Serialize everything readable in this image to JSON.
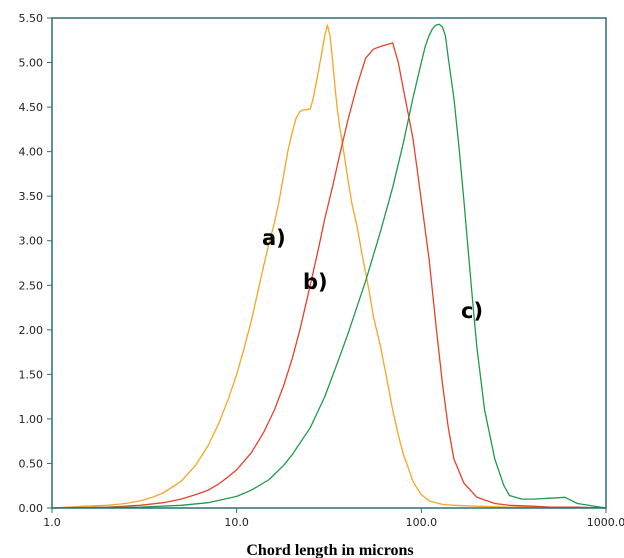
{
  "chart_data": {
    "type": "line",
    "title": "",
    "xlabel": "Chord length in microns",
    "ylabel": "",
    "xscale": "log",
    "xlim": [
      1.0,
      1000.0
    ],
    "ylim": [
      0.0,
      5.5
    ],
    "grid": false,
    "legend": "none",
    "x_ticks": [
      "1.0",
      "10.0",
      "100.0",
      "1000.0"
    ],
    "y_ticks": [
      "0.00",
      "0.50",
      "1.00",
      "1.50",
      "2.00",
      "2.50",
      "3.00",
      "3.50",
      "4.00",
      "4.50",
      "5.00",
      "5.50"
    ],
    "annotations": [
      "a)",
      "b)",
      "c)"
    ],
    "colors": {
      "frame": "#2b6e78",
      "a": "#f5a623",
      "b": "#e8412b",
      "c": "#1f9a4c"
    },
    "series": [
      {
        "color": "#f5a623",
        "x": [
          1.0,
          1.5,
          2.0,
          2.5,
          3.0,
          3.5,
          4.0,
          5.0,
          6.0,
          7.0,
          8.0,
          9.0,
          10.0,
          11.0,
          12.0,
          13.0,
          14.0,
          15.0,
          16.0,
          17.0,
          18.0,
          19.0,
          20.0,
          21.0,
          22.0,
          23.0,
          24.0,
          25.0,
          26.0,
          28.0,
          30.0,
          31.0,
          32.0,
          33.0,
          34.0,
          35.0,
          36.0,
          38.0,
          40.0,
          42.0,
          45.0,
          48.0,
          52.0,
          55.0,
          60.0,
          65.0,
          70.0,
          75.0,
          80.0,
          85.0,
          90.0,
          95.0,
          100.0,
          110.0,
          120.0,
          130.0,
          150.0,
          200.0,
          300.0,
          500.0,
          1000.0
        ],
        "y": [
          0.0,
          0.02,
          0.03,
          0.05,
          0.08,
          0.12,
          0.17,
          0.3,
          0.48,
          0.7,
          0.95,
          1.22,
          1.5,
          1.8,
          2.1,
          2.42,
          2.72,
          2.98,
          3.2,
          3.45,
          3.75,
          4.02,
          4.22,
          4.38,
          4.45,
          4.47,
          4.47,
          4.48,
          4.6,
          4.95,
          5.3,
          5.42,
          5.3,
          5.05,
          4.75,
          4.5,
          4.3,
          4.0,
          3.7,
          3.42,
          3.15,
          2.82,
          2.45,
          2.15,
          1.82,
          1.45,
          1.1,
          0.82,
          0.6,
          0.45,
          0.3,
          0.22,
          0.15,
          0.08,
          0.06,
          0.04,
          0.03,
          0.02,
          0.01,
          0.01,
          0.0
        ]
      },
      {
        "color": "#e8412b",
        "x": [
          1.0,
          2.0,
          3.0,
          4.0,
          5.0,
          6.0,
          7.0,
          8.0,
          9.0,
          10.0,
          12.0,
          14.0,
          16.0,
          18.0,
          20.0,
          22.0,
          25.0,
          28.0,
          30.0,
          33.0,
          36.0,
          40.0,
          45.0,
          50.0,
          55.0,
          60.0,
          65.0,
          70.0,
          75.0,
          80.0,
          85.0,
          90.0,
          95.0,
          100.0,
          110.0,
          120.0,
          130.0,
          140.0,
          150.0,
          170.0,
          200.0,
          250.0,
          300.0,
          400.0,
          500.0,
          700.0,
          1000.0
        ],
        "y": [
          0.0,
          0.01,
          0.03,
          0.06,
          0.1,
          0.15,
          0.2,
          0.27,
          0.35,
          0.43,
          0.62,
          0.85,
          1.1,
          1.38,
          1.68,
          2.0,
          2.5,
          2.95,
          3.25,
          3.6,
          3.95,
          4.35,
          4.75,
          5.05,
          5.15,
          5.18,
          5.2,
          5.22,
          5.0,
          4.7,
          4.42,
          4.15,
          3.8,
          3.45,
          2.8,
          2.05,
          1.4,
          0.9,
          0.55,
          0.28,
          0.12,
          0.05,
          0.03,
          0.02,
          0.01,
          0.01,
          0.0
        ]
      },
      {
        "color": "#1f9a4c",
        "x": [
          1.0,
          3.0,
          5.0,
          7.0,
          10.0,
          12.0,
          15.0,
          18.0,
          20.0,
          25.0,
          30.0,
          35.0,
          40.0,
          50.0,
          60.0,
          70.0,
          80.0,
          90.0,
          100.0,
          105.0,
          110.0,
          115.0,
          120.0,
          125.0,
          130.0,
          135.0,
          140.0,
          150.0,
          160.0,
          170.0,
          180.0,
          190.0,
          200.0,
          220.0,
          250.0,
          280.0,
          300.0,
          350.0,
          400.0,
          500.0,
          600.0,
          700.0,
          1000.0
        ],
        "y": [
          0.0,
          0.01,
          0.03,
          0.06,
          0.13,
          0.2,
          0.32,
          0.48,
          0.6,
          0.9,
          1.25,
          1.62,
          1.95,
          2.55,
          3.1,
          3.6,
          4.1,
          4.6,
          5.0,
          5.18,
          5.3,
          5.38,
          5.42,
          5.43,
          5.4,
          5.3,
          5.05,
          4.6,
          4.05,
          3.45,
          2.85,
          2.3,
          1.8,
          1.1,
          0.55,
          0.25,
          0.14,
          0.1,
          0.1,
          0.11,
          0.12,
          0.05,
          0.0
        ]
      }
    ]
  }
}
